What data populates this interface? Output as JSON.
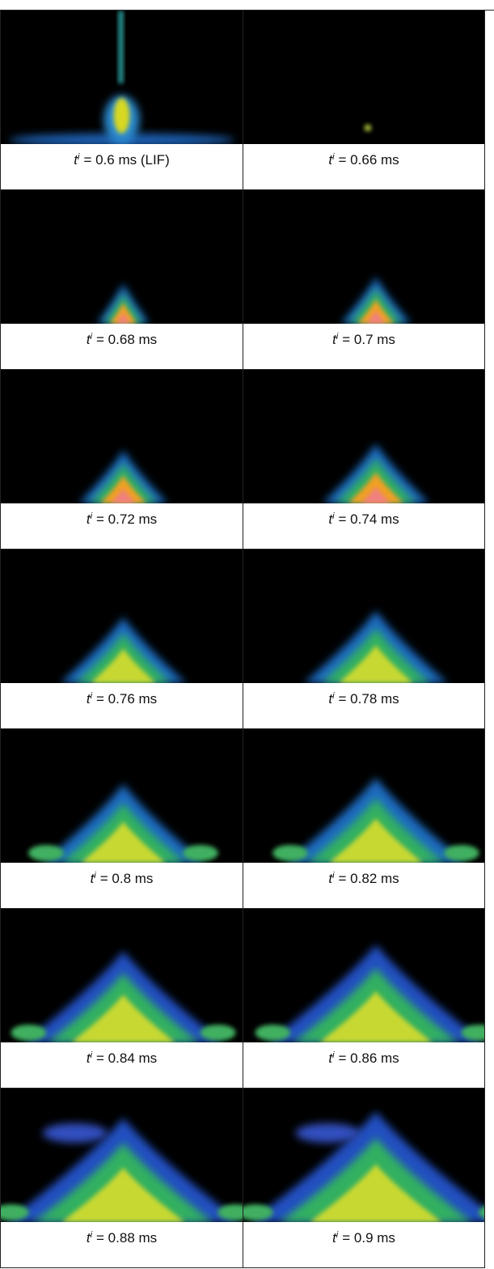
{
  "panels": [
    {
      "symbol": "t",
      "subscript": "i",
      "text": "= 0.6 ms (LIF)"
    },
    {
      "symbol": "t",
      "subscript": "i",
      "text": "= 0.66 ms"
    },
    {
      "symbol": "t",
      "subscript": "i",
      "text": "= 0.68 ms"
    },
    {
      "symbol": "t",
      "subscript": "i",
      "text": "= 0.7 ms"
    },
    {
      "symbol": "t",
      "subscript": "i",
      "text": "= 0.72 ms"
    },
    {
      "symbol": "t",
      "subscript": "i",
      "text": "= 0.74 ms"
    },
    {
      "symbol": "t",
      "subscript": "i",
      "text": "= 0.76 ms"
    },
    {
      "symbol": "t",
      "subscript": "i",
      "text": "= 0.78 ms"
    },
    {
      "symbol": "t",
      "subscript": "i",
      "text": "= 0.8 ms"
    },
    {
      "symbol": "t",
      "subscript": "i",
      "text": "= 0.82 ms"
    },
    {
      "symbol": "t",
      "subscript": "i",
      "text": "= 0.84 ms"
    },
    {
      "symbol": "t",
      "subscript": "i",
      "text": "= 0.86 ms"
    },
    {
      "symbol": "t",
      "subscript": "i",
      "text": "= 0.88 ms"
    },
    {
      "symbol": "t",
      "subscript": "i",
      "text": "= 0.9 ms"
    }
  ]
}
